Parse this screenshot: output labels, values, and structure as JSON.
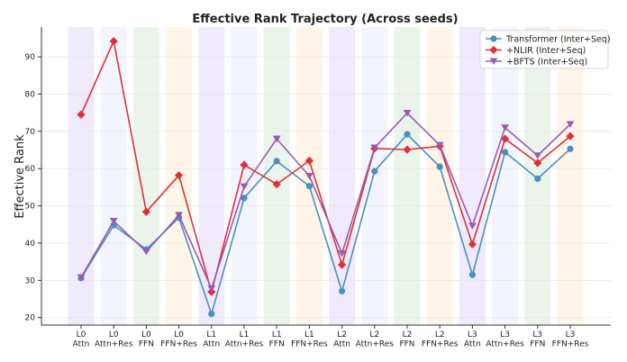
{
  "chart_data": {
    "type": "line",
    "title": "Effective Rank Trajectory (Across seeds)",
    "xlabel": "",
    "ylabel": "Effective Rank",
    "ylim": [
      18,
      98
    ],
    "yticks": [
      20,
      30,
      40,
      50,
      60,
      70,
      80,
      90
    ],
    "grid": true,
    "legend_position": "top-right",
    "categories": [
      [
        "L0",
        "Attn"
      ],
      [
        "L0",
        "Attn+Res"
      ],
      [
        "L0",
        "FFN"
      ],
      [
        "L0",
        "FFN+Res"
      ],
      [
        "L1",
        "Attn"
      ],
      [
        "L1",
        "Attn+Res"
      ],
      [
        "L1",
        "FFN"
      ],
      [
        "L1",
        "FFN+Res"
      ],
      [
        "L2",
        "Attn"
      ],
      [
        "L2",
        "Attn+Res"
      ],
      [
        "L2",
        "FFN"
      ],
      [
        "L2",
        "FFN+Res"
      ],
      [
        "L3",
        "Attn"
      ],
      [
        "L3",
        "Attn+Res"
      ],
      [
        "L3",
        "FFN"
      ],
      [
        "L3",
        "FFN+Res"
      ]
    ],
    "band_colors": [
      "#efeafc",
      "#f2f5fd",
      "#ebf4ea",
      "#fef5e8"
    ],
    "series": [
      {
        "name": "Transformer (Inter+Seq)",
        "color": "#4a8fc3",
        "marker": "circle",
        "values": [
          30.6,
          44.8,
          38.3,
          46.8,
          21.0,
          52.1,
          62.0,
          55.3,
          27.1,
          59.3,
          69.2,
          60.5,
          31.5,
          64.4,
          57.3,
          65.3
        ]
      },
      {
        "name": "+NLIR (Inter+Seq)",
        "color": "#e03036",
        "marker": "diamond",
        "values": [
          74.5,
          94.2,
          48.4,
          58.2,
          26.9,
          61.0,
          55.8,
          62.1,
          34.2,
          65.4,
          65.1,
          66.0,
          39.7,
          68.0,
          61.5,
          68.7
        ]
      },
      {
        "name": "+BFTS (Inter+Seq)",
        "color": "#9b59b6",
        "marker": "triangle-down",
        "values": [
          30.8,
          45.9,
          37.7,
          47.5,
          27.8,
          55.2,
          68.0,
          58.0,
          37.2,
          65.6,
          74.9,
          66.3,
          44.6,
          71.0,
          63.5,
          71.9
        ]
      }
    ]
  }
}
